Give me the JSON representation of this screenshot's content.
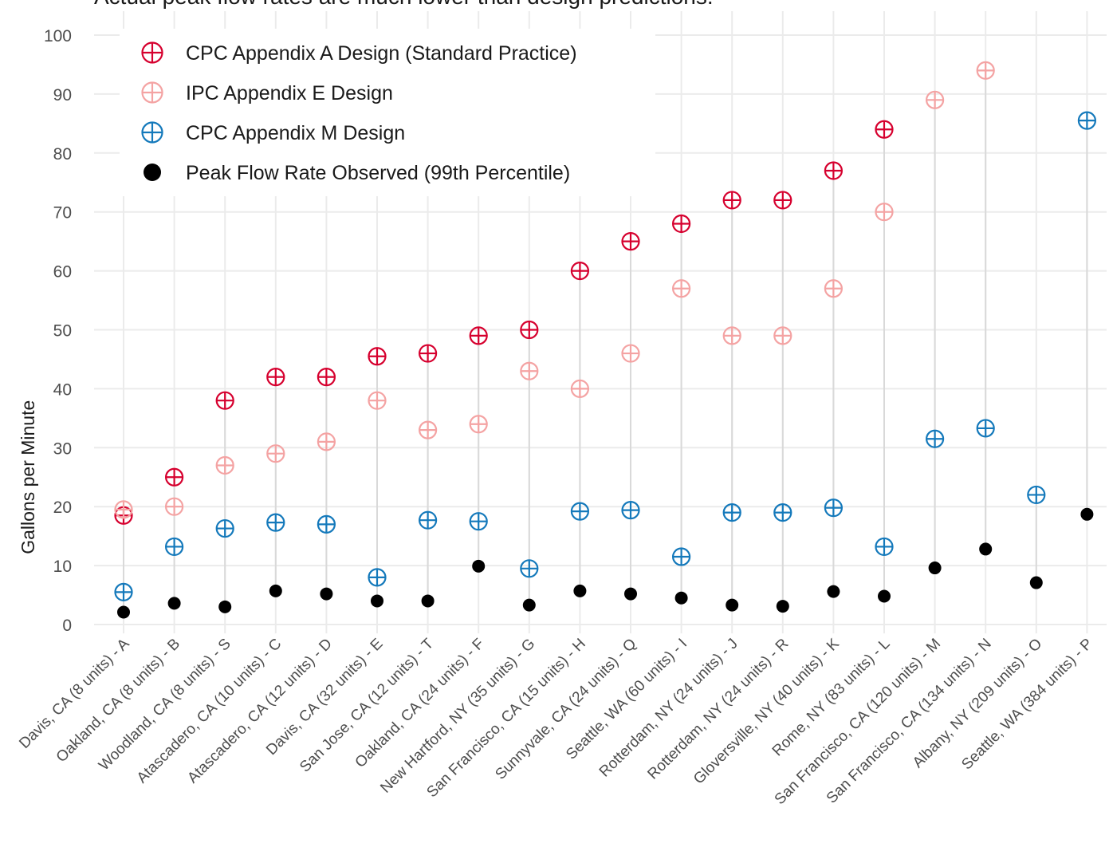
{
  "chart_data": {
    "type": "scatter",
    "title": "Actual peak flow rates are much lower than design predictions.",
    "ylabel": "Gallons per Minute",
    "xlabel": "",
    "ylim": [
      0,
      100
    ],
    "yticks": [
      0,
      10,
      20,
      30,
      40,
      50,
      60,
      70,
      80,
      90,
      100
    ],
    "grid": true,
    "legend_position": "top-left",
    "categories": [
      "Davis, CA (8 units) - A",
      "Oakland, CA (8 units) - B",
      "Woodland, CA (8 units) - S",
      "Atascadero, CA (10 units) - C",
      "Atascadero, CA (12 units) - D",
      "Davis, CA (32 units) - E",
      "San Jose, CA (12 units) - T",
      "Oakland, CA (24 units) - F",
      "New Hartford, NY  (35 units) - G",
      "San Francisco, CA (15 units) - H",
      "Sunnyvale, CA (24 units) - Q",
      "Seattle, WA (60 units) - I",
      "Rotterdam, NY (24 units) - J",
      "Rotterdam, NY (24 units) - R",
      "Gloversville, NY (40 units) - K",
      "Rome, NY (83 units) - L",
      "San Francisco, CA (120 units) - M",
      "San Francisco, CA (134 units) - N",
      "Albany, NY (209 units) - O",
      "Seattle, WA (384 units) - P"
    ],
    "series": [
      {
        "name": "CPC Appendix A Design (Standard Practice)",
        "marker": "circle-plus",
        "color": "#d6002e",
        "values": [
          18.5,
          25,
          38,
          42,
          42,
          45.5,
          46,
          49,
          50,
          60,
          65,
          68,
          72,
          72,
          77,
          84,
          null,
          null,
          null,
          null
        ]
      },
      {
        "name": "IPC Appendix E Design",
        "marker": "circle-plus",
        "color": "#f4a3a3",
        "values": [
          19.5,
          20,
          27,
          29,
          31,
          38,
          33,
          34,
          43,
          40,
          46,
          57,
          49,
          49,
          57,
          70,
          89,
          94,
          null,
          null
        ]
      },
      {
        "name": "CPC Appendix M Design",
        "marker": "circle-plus",
        "color": "#1479bb",
        "values": [
          5.5,
          13.2,
          16.3,
          17.3,
          17,
          8,
          17.7,
          17.5,
          9.5,
          19.2,
          19.4,
          11.5,
          19,
          19,
          19.8,
          13.2,
          31.5,
          33.3,
          22,
          85.5
        ]
      },
      {
        "name": "Peak Flow Rate Observed (99th Percentile)",
        "marker": "filled-circle",
        "color": "#000000",
        "values": [
          2.1,
          3.6,
          3,
          5.7,
          5.2,
          4,
          4,
          9.9,
          3.3,
          5.7,
          5.2,
          4.5,
          3.3,
          3.1,
          5.6,
          4.8,
          9.6,
          12.8,
          7.1,
          18.7
        ]
      }
    ]
  }
}
